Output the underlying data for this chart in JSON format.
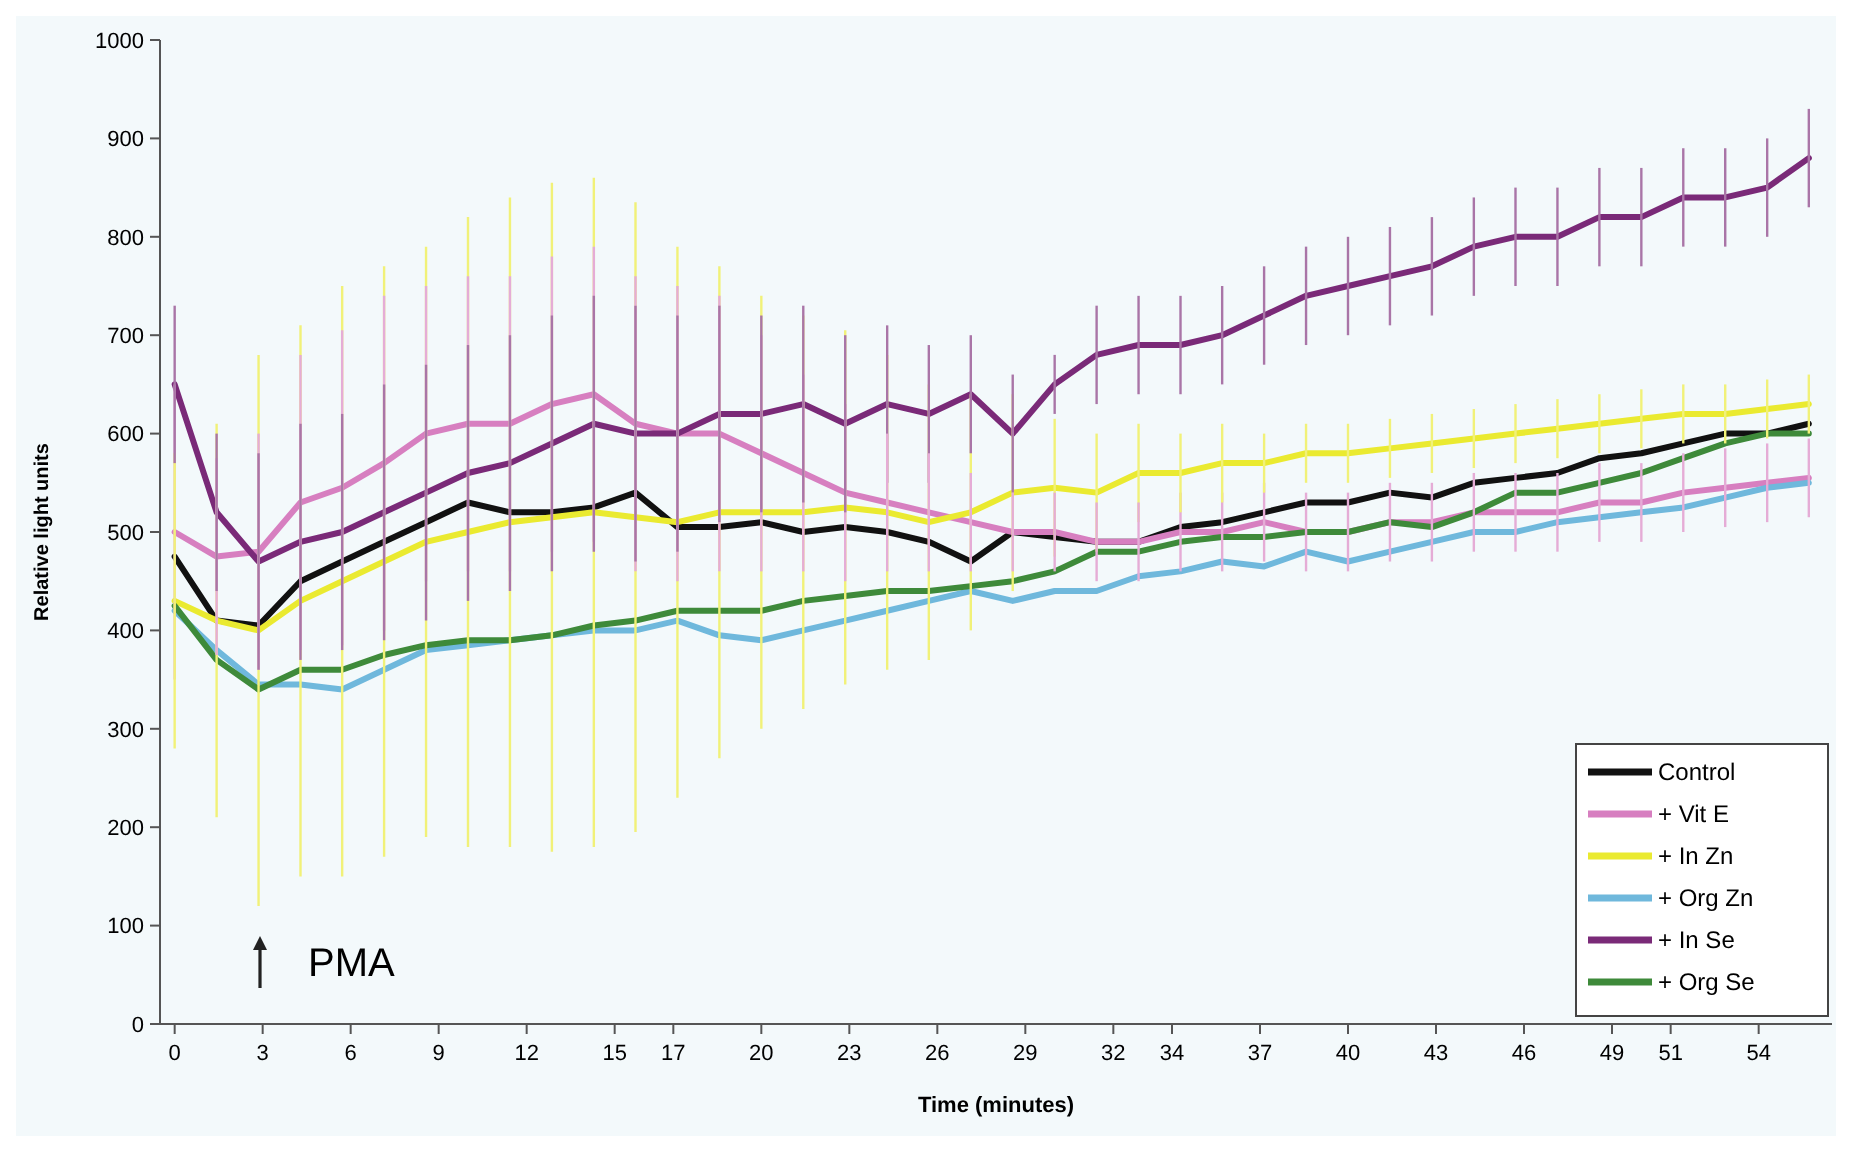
{
  "chart_data": {
    "type": "line",
    "xlabel": "Time (minutes)",
    "ylabel": "Relative light units",
    "x": [
      0,
      1.43,
      2.86,
      4.29,
      5.71,
      7.14,
      8.57,
      10,
      11.43,
      12.86,
      14.29,
      15.71,
      17.14,
      18.57,
      20,
      21.43,
      22.86,
      24.29,
      25.71,
      27.14,
      28.57,
      30,
      31.43,
      32.86,
      34.29,
      35.71,
      37.14,
      38.57,
      40,
      41.43,
      42.86,
      44.29,
      45.71,
      47.14,
      48.57,
      50,
      51.43,
      52.86,
      54.29,
      55.71
    ],
    "xlim": [
      -0.5,
      56.5
    ],
    "xticks": [
      0,
      3,
      6,
      9,
      12,
      15,
      17,
      20,
      23,
      26,
      29,
      32,
      34,
      37,
      40,
      43,
      46,
      49,
      51,
      54
    ],
    "ylim": [
      0,
      1000
    ],
    "yticks": [
      0,
      100,
      200,
      300,
      400,
      500,
      600,
      700,
      800,
      900,
      1000
    ],
    "grid": false,
    "legend": "bottom right",
    "marker": "none",
    "line_style": "solid",
    "annotations": [
      "PMA"
    ],
    "series": [
      {
        "name": "Control",
        "color": "#111111",
        "values": [
          475,
          410,
          405,
          450,
          470,
          490,
          510,
          530,
          520,
          520,
          525,
          540,
          505,
          505,
          510,
          500,
          505,
          500,
          490,
          470,
          500,
          495,
          490,
          490,
          505,
          510,
          520,
          530,
          530,
          540,
          535,
          550,
          555,
          560,
          575,
          580,
          590,
          600,
          600,
          610
        ]
      },
      {
        "name": "+ Vit E",
        "color": "#d77fc0",
        "values": [
          500,
          475,
          480,
          530,
          545,
          570,
          600,
          610,
          610,
          630,
          640,
          610,
          600,
          600,
          580,
          560,
          540,
          530,
          520,
          510,
          500,
          500,
          490,
          490,
          500,
          500,
          510,
          500,
          500,
          510,
          510,
          520,
          520,
          520,
          530,
          530,
          540,
          545,
          550,
          555
        ],
        "errors": [
          150,
          100,
          120,
          150,
          160,
          170,
          150,
          150,
          150,
          150,
          150,
          150,
          150,
          140,
          120,
          100,
          90,
          70,
          60,
          50,
          40,
          40,
          40,
          40,
          40,
          40,
          40,
          40,
          40,
          40,
          40,
          40,
          40,
          40,
          40,
          40,
          40,
          40,
          40,
          40
        ]
      },
      {
        "name": "+ In Zn",
        "color": "#eaea30",
        "values": [
          430,
          410,
          400,
          430,
          450,
          470,
          490,
          500,
          510,
          515,
          520,
          515,
          510,
          520,
          520,
          520,
          525,
          520,
          510,
          520,
          540,
          545,
          540,
          560,
          560,
          570,
          570,
          580,
          580,
          585,
          590,
          595,
          600,
          605,
          610,
          615,
          620,
          620,
          625,
          630
        ],
        "errors": [
          150,
          200,
          280,
          280,
          300,
          300,
          300,
          320,
          330,
          340,
          340,
          320,
          280,
          250,
          220,
          200,
          180,
          160,
          140,
          120,
          100,
          70,
          60,
          50,
          40,
          40,
          30,
          30,
          30,
          30,
          30,
          30,
          30,
          30,
          30,
          30,
          30,
          30,
          30,
          30
        ]
      },
      {
        "name": "+ Org Zn",
        "color": "#6fb8dc",
        "values": [
          420,
          380,
          345,
          345,
          340,
          360,
          380,
          385,
          390,
          395,
          400,
          400,
          410,
          395,
          390,
          400,
          410,
          420,
          430,
          440,
          430,
          440,
          440,
          455,
          460,
          470,
          465,
          480,
          470,
          480,
          490,
          500,
          500,
          510,
          515,
          520,
          525,
          535,
          545,
          550
        ]
      },
      {
        "name": "+ In Se",
        "color": "#7a2a78",
        "values": [
          650,
          520,
          470,
          490,
          500,
          520,
          540,
          560,
          570,
          590,
          610,
          600,
          600,
          620,
          620,
          630,
          610,
          630,
          620,
          640,
          600,
          650,
          680,
          690,
          690,
          700,
          720,
          740,
          750,
          760,
          770,
          790,
          800,
          800,
          820,
          820,
          840,
          840,
          850,
          880
        ],
        "errors": [
          80,
          80,
          110,
          120,
          120,
          130,
          130,
          130,
          130,
          130,
          130,
          130,
          120,
          110,
          100,
          100,
          90,
          80,
          70,
          60,
          60,
          30,
          50,
          50,
          50,
          50,
          50,
          50,
          50,
          50,
          50,
          50,
          50,
          50,
          50,
          50,
          50,
          50,
          50,
          50
        ]
      },
      {
        "name": "+ Org Se",
        "color": "#3e8a3a",
        "values": [
          425,
          370,
          340,
          360,
          360,
          375,
          385,
          390,
          390,
          395,
          405,
          410,
          420,
          420,
          420,
          430,
          435,
          440,
          440,
          445,
          450,
          460,
          480,
          480,
          490,
          495,
          495,
          500,
          500,
          510,
          505,
          520,
          540,
          540,
          550,
          560,
          575,
          590,
          600,
          600
        ]
      }
    ]
  }
}
